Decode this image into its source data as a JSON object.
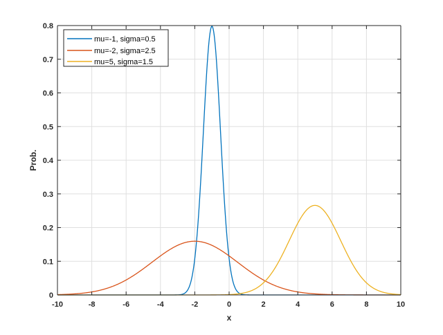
{
  "chart_data": {
    "type": "line",
    "title": "",
    "xlabel": "x",
    "ylabel": "Prob.",
    "xlim": [
      -10,
      10
    ],
    "ylim": [
      0,
      0.8
    ],
    "grid": true,
    "legend_position": "upper-left",
    "x_ticks": [
      -10,
      -8,
      -6,
      -4,
      -2,
      0,
      2,
      4,
      6,
      8,
      10
    ],
    "x_tick_labels": [
      "-10",
      "-8",
      "-6",
      "-4",
      "-2",
      "0",
      "2",
      "4",
      "6",
      "8",
      "10"
    ],
    "y_ticks": [
      0,
      0.1,
      0.2,
      0.3,
      0.4,
      0.5,
      0.6,
      0.7,
      0.8
    ],
    "y_tick_labels": [
      "0",
      "0.1",
      "0.2",
      "0.3",
      "0.4",
      "0.5",
      "0.6",
      "0.7",
      "0.8"
    ],
    "series": [
      {
        "name": "mu=-1, sigma=0.5",
        "distribution": "normal",
        "mu": -1,
        "sigma": 0.5,
        "peak": 0.798,
        "color": "#0072BD"
      },
      {
        "name": "mu=-2, sigma=2.5",
        "distribution": "normal",
        "mu": -2,
        "sigma": 2.5,
        "peak": 0.16,
        "color": "#D95319"
      },
      {
        "name": "mu=5, sigma=1.5",
        "distribution": "normal",
        "mu": 5,
        "sigma": 1.5,
        "peak": 0.266,
        "color": "#EDB120"
      }
    ]
  },
  "legend": {
    "items": [
      {
        "label": "mu=-1, sigma=0.5",
        "color": "#0072BD"
      },
      {
        "label": "mu=-2, sigma=2.5",
        "color": "#D95319"
      },
      {
        "label": "mu=5, sigma=1.5",
        "color": "#EDB120"
      }
    ]
  }
}
